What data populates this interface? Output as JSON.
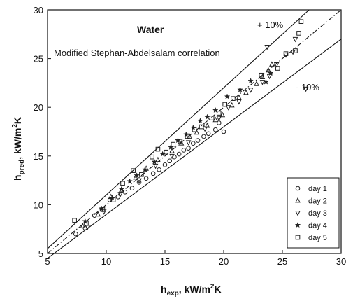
{
  "chart_data": {
    "type": "scatter",
    "xlabel": "h",
    "xlabel_sub": "exp",
    "xlabel_unit": ", kW/m",
    "xlabel_unit_sup": "2",
    "xlabel_unit_end": "K",
    "ylabel": "h",
    "ylabel_sub": "pred",
    "ylabel_unit": ", kW/m",
    "ylabel_unit_sup": "2",
    "ylabel_unit_end": "K",
    "xlim": [
      5,
      30
    ],
    "ylim": [
      5,
      30
    ],
    "xticks": [
      5,
      10,
      15,
      20,
      25,
      30
    ],
    "yticks": [
      5,
      10,
      15,
      20,
      25,
      30
    ],
    "grid": false,
    "legend_position": "bottom-right",
    "annotations": {
      "fluid": "Water",
      "correlation": "Modified Stephan-Abdelsalam correlation",
      "upper_band": "+ 10%",
      "lower_band": "- 10%"
    },
    "reference_lines": [
      {
        "name": "+10%",
        "slope": 1.1,
        "style": "solid"
      },
      {
        "name": "parity",
        "slope": 1.0,
        "style": "dash-dot"
      },
      {
        "name": "-10%",
        "slope": 0.9,
        "style": "solid"
      }
    ],
    "series": [
      {
        "name": "day 1",
        "marker": "circle",
        "points": [
          [
            7.4,
            7.0
          ],
          [
            8.2,
            7.6
          ],
          [
            9.0,
            8.9
          ],
          [
            10.3,
            10.5
          ],
          [
            11.0,
            10.8
          ],
          [
            11.6,
            11.3
          ],
          [
            12.2,
            11.7
          ],
          [
            12.8,
            12.3
          ],
          [
            13.4,
            12.7
          ],
          [
            14.0,
            13.2
          ],
          [
            14.5,
            13.6
          ],
          [
            15.0,
            14.1
          ],
          [
            15.4,
            14.5
          ],
          [
            15.8,
            14.9
          ],
          [
            16.2,
            15.2
          ],
          [
            16.6,
            15.6
          ],
          [
            17.0,
            15.8
          ],
          [
            17.4,
            16.3
          ],
          [
            17.8,
            16.6
          ],
          [
            18.3,
            17.0
          ],
          [
            18.7,
            17.3
          ],
          [
            19.3,
            17.7
          ],
          [
            20.0,
            17.5
          ],
          [
            19.6,
            18.4
          ]
        ]
      },
      {
        "name": "day 2",
        "marker": "triangle-up",
        "points": [
          [
            8.0,
            7.8
          ],
          [
            9.3,
            9.0
          ],
          [
            10.4,
            10.8
          ],
          [
            11.3,
            11.5
          ],
          [
            12.5,
            12.8
          ],
          [
            13.4,
            13.7
          ],
          [
            14.4,
            14.6
          ],
          [
            15.6,
            15.5
          ],
          [
            16.4,
            16.3
          ],
          [
            17.1,
            17.0
          ],
          [
            17.7,
            17.4
          ],
          [
            18.6,
            18.1
          ],
          [
            19.3,
            18.7
          ],
          [
            19.9,
            19.2
          ],
          [
            20.7,
            20.2
          ],
          [
            21.3,
            21.0
          ],
          [
            21.9,
            21.5
          ],
          [
            22.8,
            22.4
          ],
          [
            23.3,
            23.1
          ],
          [
            23.8,
            23.8
          ],
          [
            24.1,
            24.4
          ]
        ]
      },
      {
        "name": "day 3",
        "marker": "triangle-down",
        "points": [
          [
            8.4,
            7.7
          ],
          [
            9.8,
            9.3
          ],
          [
            11.2,
            11.1
          ],
          [
            12.8,
            12.5
          ],
          [
            14.2,
            14.0
          ],
          [
            15.6,
            15.0
          ],
          [
            17.0,
            16.4
          ],
          [
            18.4,
            17.8
          ],
          [
            19.6,
            18.9
          ],
          [
            20.4,
            20.0
          ],
          [
            21.3,
            20.6
          ],
          [
            22.3,
            21.8
          ],
          [
            23.3,
            22.6
          ],
          [
            23.9,
            23.2
          ],
          [
            24.5,
            24.4
          ],
          [
            25.3,
            25.4
          ],
          [
            26.1,
            27.0
          ],
          [
            23.7,
            26.2
          ],
          [
            27.0,
            21.9
          ],
          [
            25.9,
            25.7
          ]
        ]
      },
      {
        "name": "day 4",
        "marker": "star",
        "points": [
          [
            8.2,
            8.3
          ],
          [
            9.6,
            9.6
          ],
          [
            10.5,
            10.7
          ],
          [
            11.3,
            11.6
          ],
          [
            12.0,
            12.4
          ],
          [
            12.6,
            13.0
          ],
          [
            13.3,
            13.6
          ],
          [
            14.1,
            14.4
          ],
          [
            14.8,
            15.2
          ],
          [
            15.5,
            15.9
          ],
          [
            16.1,
            16.6
          ],
          [
            16.8,
            17.2
          ],
          [
            17.4,
            17.9
          ],
          [
            18.0,
            18.6
          ],
          [
            18.6,
            19.0
          ],
          [
            19.3,
            19.7
          ],
          [
            20.3,
            21.1
          ],
          [
            21.4,
            21.8
          ],
          [
            22.3,
            22.7
          ],
          [
            23.6,
            22.6
          ],
          [
            24.0,
            23.5
          ]
        ]
      },
      {
        "name": "day 5",
        "marker": "square",
        "points": [
          [
            7.3,
            8.4
          ],
          [
            8.3,
            8.1
          ],
          [
            9.7,
            9.5
          ],
          [
            10.6,
            10.5
          ],
          [
            11.4,
            12.2
          ],
          [
            12.3,
            13.5
          ],
          [
            13.0,
            13.1
          ],
          [
            13.9,
            14.9
          ],
          [
            14.4,
            15.7
          ],
          [
            15.1,
            15.4
          ],
          [
            15.7,
            16.2
          ],
          [
            16.3,
            16.5
          ],
          [
            16.9,
            17.0
          ],
          [
            17.5,
            17.7
          ],
          [
            18.1,
            18.0
          ],
          [
            18.5,
            18.2
          ],
          [
            19.0,
            18.9
          ],
          [
            19.6,
            19.4
          ],
          [
            20.1,
            20.3
          ],
          [
            20.8,
            20.9
          ],
          [
            23.2,
            23.3
          ],
          [
            24.6,
            24.0
          ],
          [
            25.3,
            25.5
          ],
          [
            26.1,
            25.8
          ],
          [
            26.4,
            27.6
          ],
          [
            26.6,
            28.8
          ]
        ]
      }
    ]
  }
}
